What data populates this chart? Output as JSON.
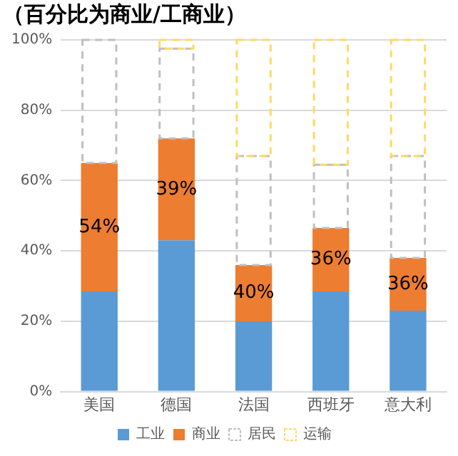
{
  "chart_data": {
    "type": "bar",
    "title": "（百分比为商业/工商业）",
    "stacked": true,
    "grid": "y",
    "legend": "bottom",
    "categories": [
      "美国",
      "德国",
      "法国",
      "西班牙",
      "意大利"
    ],
    "annotations": [
      "54%",
      "39%",
      "40%",
      "36%",
      "36%"
    ],
    "ylim": [
      0,
      100
    ],
    "yticks": [
      {
        "value": 0,
        "label": "0%"
      },
      {
        "value": 20,
        "label": "20%"
      },
      {
        "value": 40,
        "label": "40%"
      },
      {
        "value": 60,
        "label": "60%"
      },
      {
        "value": 80,
        "label": "80%"
      },
      {
        "value": 100,
        "label": "100%"
      }
    ],
    "series": [
      {
        "name": "工业",
        "color": "#5b9bd5",
        "values": [
          28.5,
          43,
          20,
          28.5,
          23
        ]
      },
      {
        "name": "商业",
        "color": "#ed7d31",
        "values": [
          36.5,
          29,
          16,
          18,
          15
        ]
      },
      {
        "name": "居民",
        "color": "#bfbfbf",
        "line_style": "dashed",
        "values": [
          35,
          25.5,
          31,
          18,
          29
        ]
      },
      {
        "name": "运输",
        "color": "#ffd966",
        "line_style": "dashed",
        "values": [
          0,
          2.5,
          33,
          35.5,
          33
        ]
      }
    ]
  }
}
